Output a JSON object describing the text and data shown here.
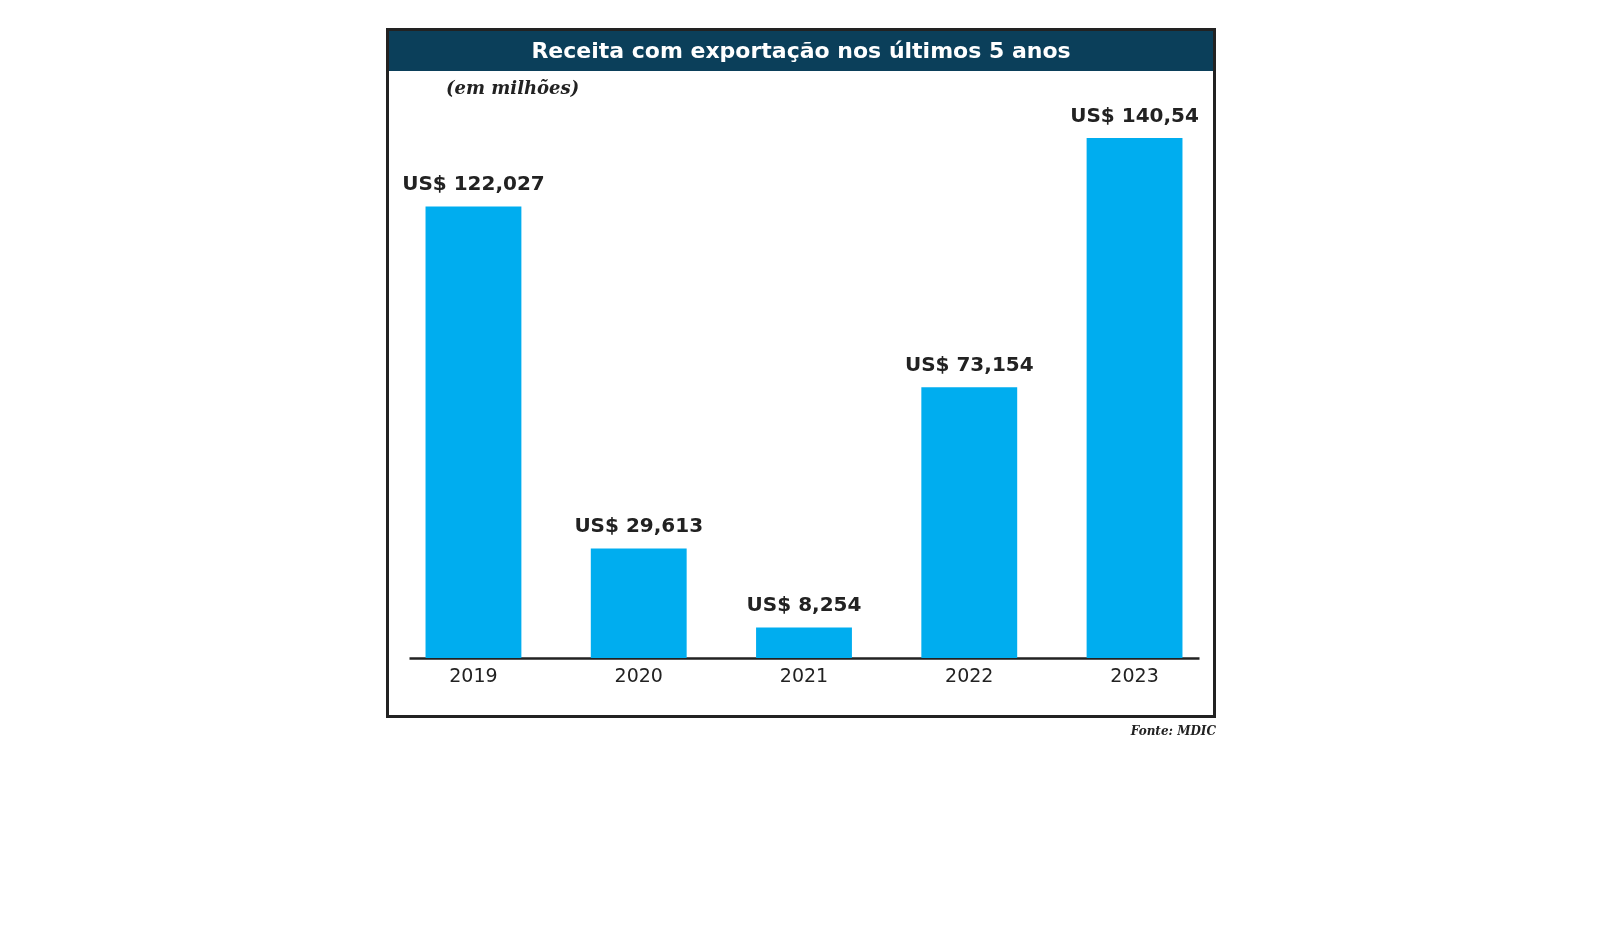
{
  "chart_data": {
    "type": "bar",
    "title": "Receita com exportação nos últimos 5 anos",
    "categories": [
      "2019",
      "2020",
      "2021",
      "2022",
      "2023"
    ],
    "values": [
      122.027,
      29.613,
      8.254,
      73.154,
      140.54
    ],
    "value_labels": [
      "US$ 122,027",
      "US$ 29,613",
      "US$ 8,254",
      "US$ 73,154",
      "US$ 140,54"
    ],
    "color": "#00adef",
    "grid": false,
    "tick_labels": "x",
    "annotations": [
      "(em milhões)",
      "Fonte: MDIC"
    ]
  }
}
